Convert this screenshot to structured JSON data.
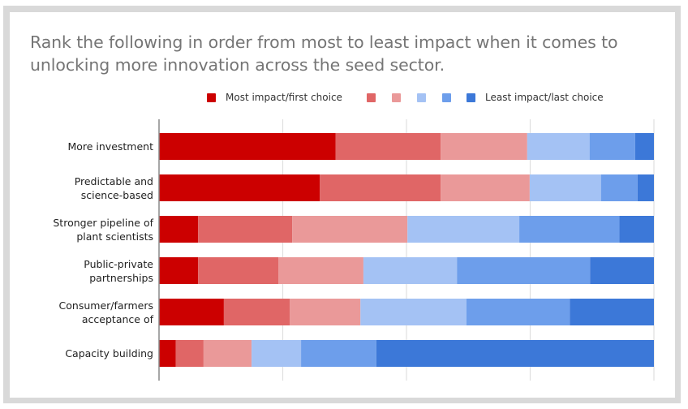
{
  "chart_data": {
    "type": "bar",
    "orientation": "horizontal",
    "stacked": "percent",
    "title": "Rank the following in order from most to least impact when it comes to unlocking more innovation across the seed sector.",
    "xlabel": "",
    "ylabel": "",
    "xlim": [
      0,
      100
    ],
    "grid": true,
    "legend_position": "top",
    "categories": [
      [
        "More investment"
      ],
      [
        "Predictable and",
        "science-based"
      ],
      [
        "Stronger pipeline of",
        "plant scientists"
      ],
      [
        "Public-private",
        "partnerships"
      ],
      [
        "Consumer/farmers",
        "acceptance of"
      ],
      [
        "Capacity building"
      ]
    ],
    "series": [
      {
        "name": "Most impact/first choice",
        "color": "#cc0000",
        "values": [
          35.7,
          32.5,
          7.9,
          7.9,
          13.1,
          3.4
        ]
      },
      {
        "name": "",
        "color": "#e06666",
        "values": [
          21.2,
          24.4,
          19.0,
          16.2,
          13.3,
          5.6
        ]
      },
      {
        "name": "",
        "color": "#ea9999",
        "values": [
          17.5,
          18.0,
          23.3,
          17.2,
          14.3,
          9.7
        ]
      },
      {
        "name": "",
        "color": "#a4c2f4",
        "values": [
          12.6,
          14.4,
          22.6,
          18.9,
          21.4,
          10.0
        ]
      },
      {
        "name": "",
        "color": "#6d9eeb",
        "values": [
          9.2,
          7.4,
          20.2,
          26.9,
          20.9,
          15.2
        ]
      },
      {
        "name": "Least impact/last choice",
        "color": "#3c78d8",
        "values": [
          3.8,
          3.3,
          7.0,
          12.9,
          17.0,
          56.1
        ]
      }
    ]
  }
}
